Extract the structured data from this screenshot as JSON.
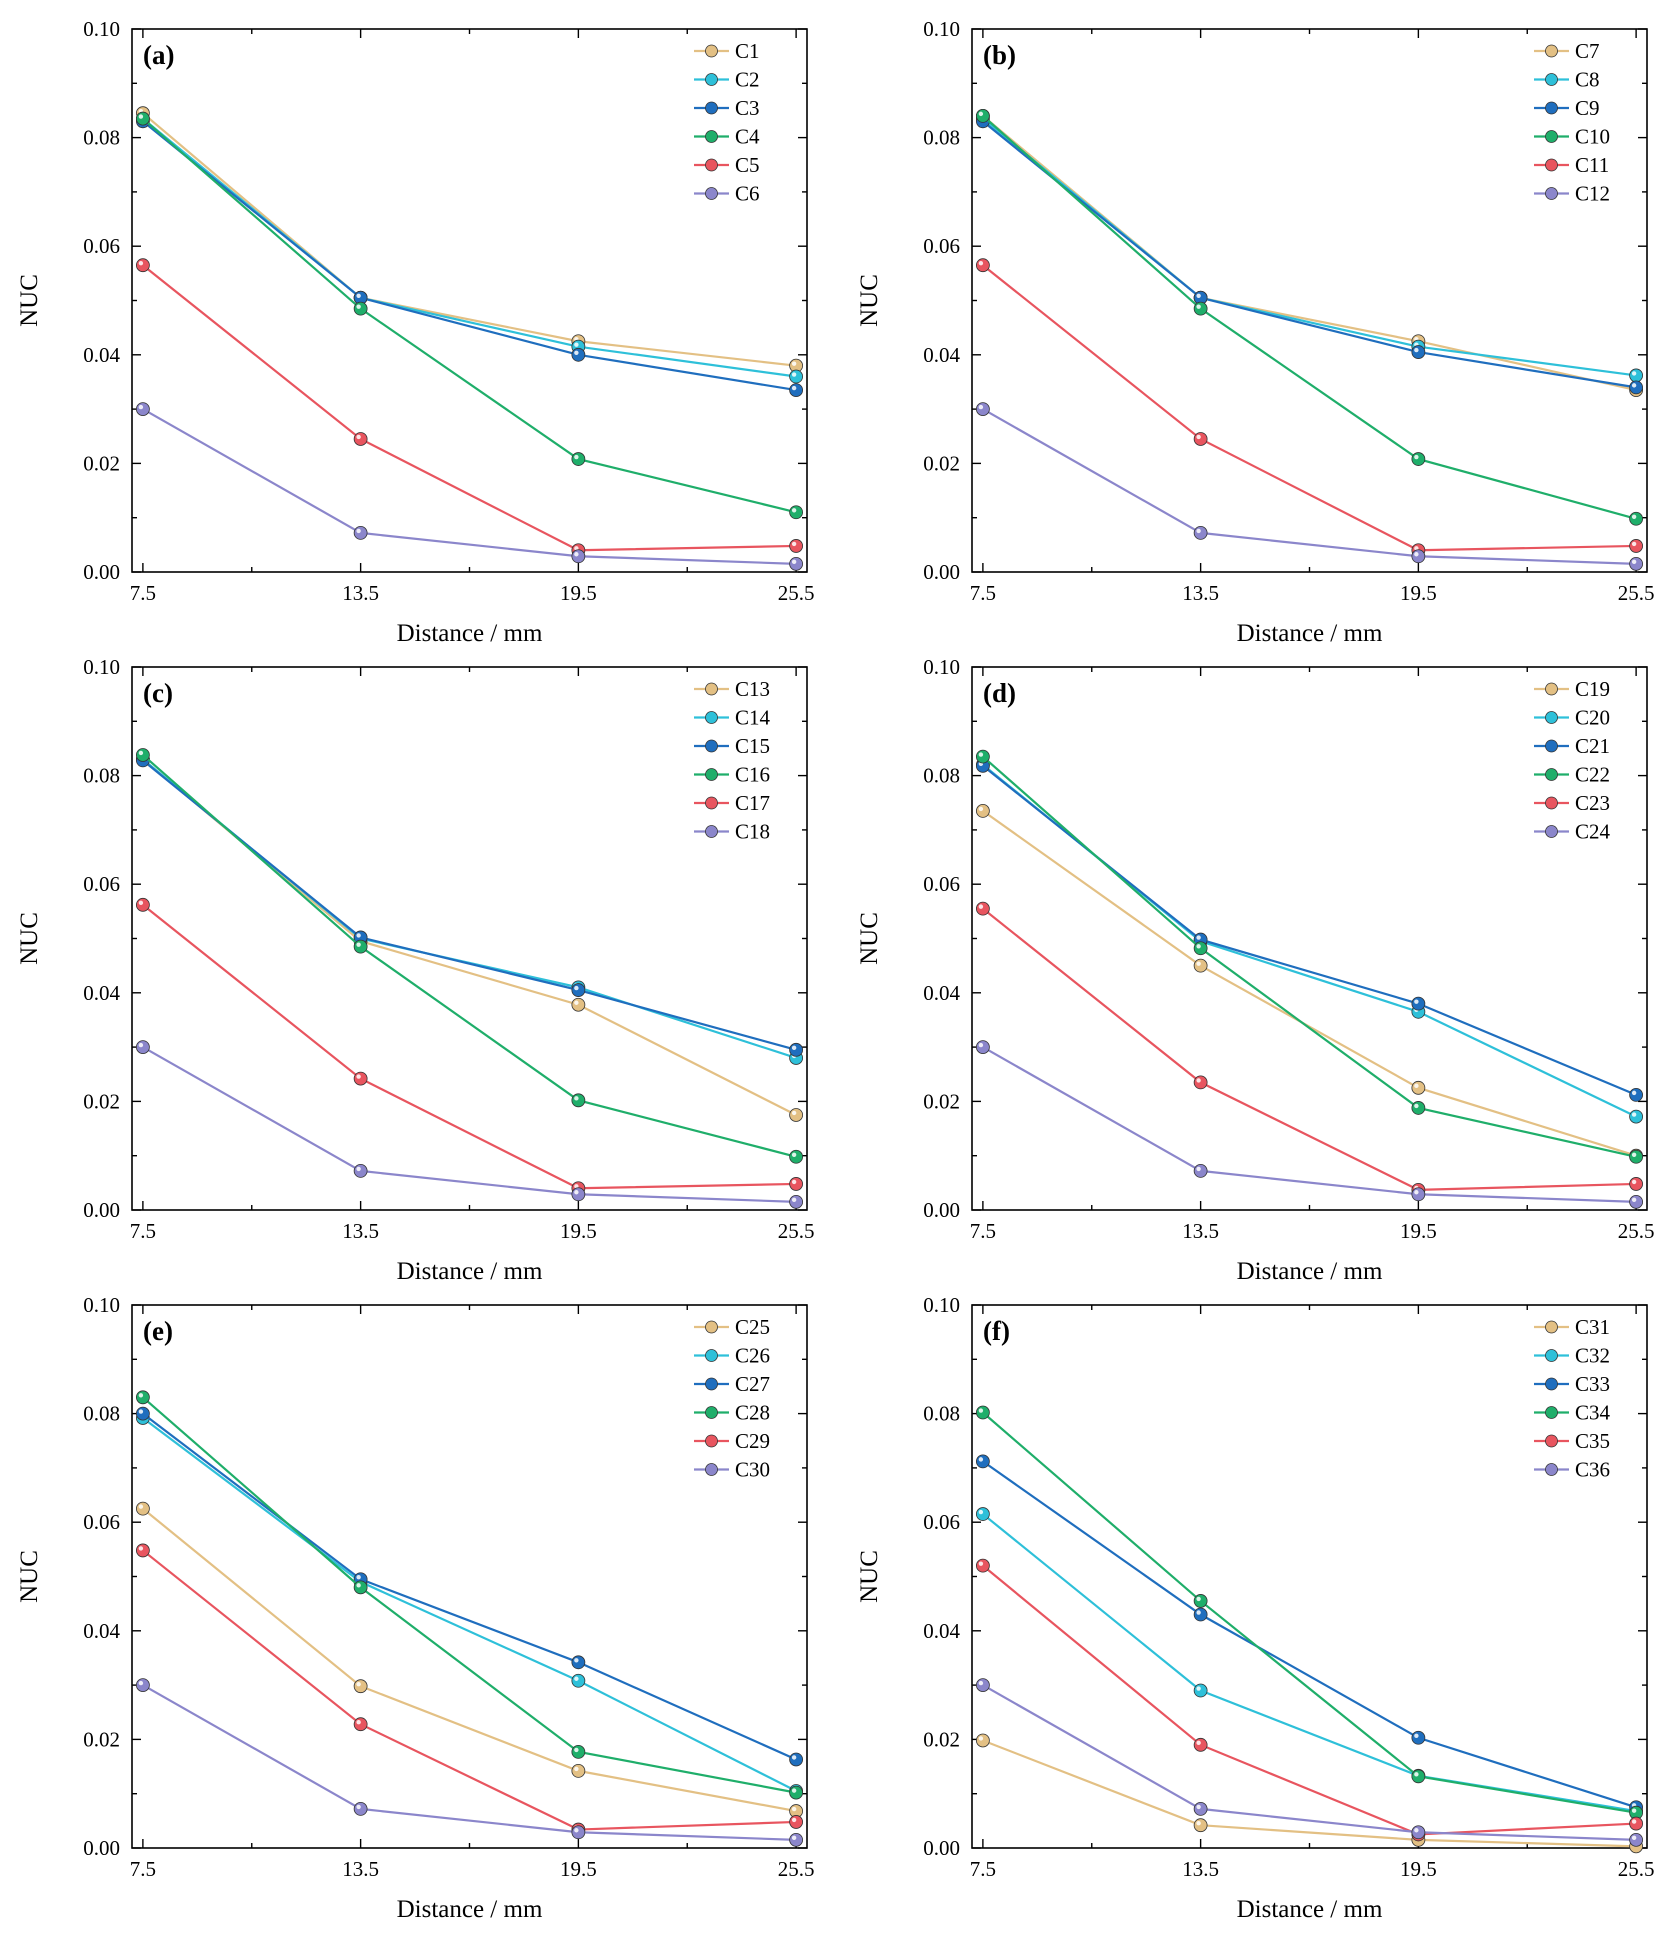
{
  "colors": {
    "c1": "#E3C084",
    "c2": "#2EC0D9",
    "c3": "#1F6EBE",
    "c4": "#1FAE6A",
    "c5": "#E8555F",
    "c6": "#8B86CB"
  },
  "chart_data": [
    {
      "type": "line",
      "panel_label": "(a)",
      "xlabel": "Distance / mm",
      "ylabel": "NUC",
      "x": [
        7.5,
        13.5,
        19.5,
        25.5
      ],
      "x_tick_labels": [
        "7.5",
        "13.5",
        "19.5",
        "25.5"
      ],
      "xlim": [
        7.2,
        25.8
      ],
      "ylim": [
        0,
        0.1
      ],
      "y_ticks": [
        0,
        0.02,
        0.04,
        0.06,
        0.08,
        0.1
      ],
      "y_tick_labels": [
        "0.00",
        "0.02",
        "0.04",
        "0.06",
        "0.08",
        "0.10"
      ],
      "legend_position": "top-right",
      "series": [
        {
          "name": "C1",
          "color_key": "c1",
          "values": [
            0.0845,
            0.0505,
            0.0425,
            0.038
          ]
        },
        {
          "name": "C2",
          "color_key": "c2",
          "values": [
            0.0835,
            0.0505,
            0.0415,
            0.036
          ]
        },
        {
          "name": "C3",
          "color_key": "c3",
          "values": [
            0.083,
            0.0505,
            0.04,
            0.0335
          ]
        },
        {
          "name": "C4",
          "color_key": "c4",
          "values": [
            0.0835,
            0.0485,
            0.0208,
            0.011
          ]
        },
        {
          "name": "C5",
          "color_key": "c5",
          "values": [
            0.0565,
            0.0245,
            0.004,
            0.0048
          ]
        },
        {
          "name": "C6",
          "color_key": "c6",
          "values": [
            0.03,
            0.0072,
            0.0029,
            0.0015
          ]
        }
      ]
    },
    {
      "type": "line",
      "panel_label": "(b)",
      "xlabel": "Distance / mm",
      "ylabel": "NUC",
      "x": [
        7.5,
        13.5,
        19.5,
        25.5
      ],
      "x_tick_labels": [
        "7.5",
        "13.5",
        "19.5",
        "25.5"
      ],
      "xlim": [
        7.2,
        25.8
      ],
      "ylim": [
        0,
        0.1
      ],
      "y_ticks": [
        0,
        0.02,
        0.04,
        0.06,
        0.08,
        0.1
      ],
      "y_tick_labels": [
        "0.00",
        "0.02",
        "0.04",
        "0.06",
        "0.08",
        "0.10"
      ],
      "legend_position": "top-right",
      "series": [
        {
          "name": "C7",
          "color_key": "c1",
          "values": [
            0.084,
            0.0505,
            0.0425,
            0.0335
          ]
        },
        {
          "name": "C8",
          "color_key": "c2",
          "values": [
            0.0835,
            0.0505,
            0.0415,
            0.0362
          ]
        },
        {
          "name": "C9",
          "color_key": "c3",
          "values": [
            0.083,
            0.0505,
            0.0405,
            0.034
          ]
        },
        {
          "name": "C10",
          "color_key": "c4",
          "values": [
            0.084,
            0.0485,
            0.0208,
            0.0098
          ]
        },
        {
          "name": "C11",
          "color_key": "c5",
          "values": [
            0.0565,
            0.0245,
            0.004,
            0.0048
          ]
        },
        {
          "name": "C12",
          "color_key": "c6",
          "values": [
            0.03,
            0.0072,
            0.0029,
            0.0015
          ]
        }
      ]
    },
    {
      "type": "line",
      "panel_label": "(c)",
      "xlabel": "Distance / mm",
      "ylabel": "NUC",
      "x": [
        7.5,
        13.5,
        19.5,
        25.5
      ],
      "x_tick_labels": [
        "7.5",
        "13.5",
        "19.5",
        "25.5"
      ],
      "xlim": [
        7.2,
        25.8
      ],
      "ylim": [
        0,
        0.1
      ],
      "y_ticks": [
        0,
        0.02,
        0.04,
        0.06,
        0.08,
        0.1
      ],
      "y_tick_labels": [
        "0.00",
        "0.02",
        "0.04",
        "0.06",
        "0.08",
        "0.10"
      ],
      "legend_position": "top-right",
      "series": [
        {
          "name": "C13",
          "color_key": "c1",
          "values": [
            0.083,
            0.0495,
            0.0378,
            0.0175
          ]
        },
        {
          "name": "C14",
          "color_key": "c2",
          "values": [
            0.083,
            0.05,
            0.041,
            0.028
          ]
        },
        {
          "name": "C15",
          "color_key": "c3",
          "values": [
            0.0828,
            0.0502,
            0.0405,
            0.0295
          ]
        },
        {
          "name": "C16",
          "color_key": "c4",
          "values": [
            0.0838,
            0.0485,
            0.0202,
            0.0098
          ]
        },
        {
          "name": "C17",
          "color_key": "c5",
          "values": [
            0.0562,
            0.0242,
            0.004,
            0.0048
          ]
        },
        {
          "name": "C18",
          "color_key": "c6",
          "values": [
            0.03,
            0.0072,
            0.0029,
            0.0015
          ]
        }
      ]
    },
    {
      "type": "line",
      "panel_label": "(d)",
      "xlabel": "Distance / mm",
      "ylabel": "NUC",
      "x": [
        7.5,
        13.5,
        19.5,
        25.5
      ],
      "x_tick_labels": [
        "7.5",
        "13.5",
        "19.5",
        "25.5"
      ],
      "xlim": [
        7.2,
        25.8
      ],
      "ylim": [
        0,
        0.1
      ],
      "y_ticks": [
        0,
        0.02,
        0.04,
        0.06,
        0.08,
        0.1
      ],
      "y_tick_labels": [
        "0.00",
        "0.02",
        "0.04",
        "0.06",
        "0.08",
        "0.10"
      ],
      "legend_position": "top-right",
      "series": [
        {
          "name": "C19",
          "color_key": "c1",
          "values": [
            0.0735,
            0.045,
            0.0225,
            0.01
          ]
        },
        {
          "name": "C20",
          "color_key": "c2",
          "values": [
            0.082,
            0.0495,
            0.0365,
            0.0172
          ]
        },
        {
          "name": "C21",
          "color_key": "c3",
          "values": [
            0.0818,
            0.0498,
            0.038,
            0.0212
          ]
        },
        {
          "name": "C22",
          "color_key": "c4",
          "values": [
            0.0835,
            0.0482,
            0.0188,
            0.0098
          ]
        },
        {
          "name": "C23",
          "color_key": "c5",
          "values": [
            0.0555,
            0.0235,
            0.0037,
            0.0048
          ]
        },
        {
          "name": "C24",
          "color_key": "c6",
          "values": [
            0.03,
            0.0072,
            0.0029,
            0.0015
          ]
        }
      ]
    },
    {
      "type": "line",
      "panel_label": "(e)",
      "xlabel": "Distance / mm",
      "ylabel": "NUC",
      "x": [
        7.5,
        13.5,
        19.5,
        25.5
      ],
      "x_tick_labels": [
        "7.5",
        "13.5",
        "19.5",
        "25.5"
      ],
      "xlim": [
        7.2,
        25.8
      ],
      "ylim": [
        0,
        0.1
      ],
      "y_ticks": [
        0,
        0.02,
        0.04,
        0.06,
        0.08,
        0.1
      ],
      "y_tick_labels": [
        "0.00",
        "0.02",
        "0.04",
        "0.06",
        "0.08",
        "0.10"
      ],
      "legend_position": "top-right",
      "series": [
        {
          "name": "C25",
          "color_key": "c1",
          "values": [
            0.0625,
            0.0298,
            0.0142,
            0.0068
          ]
        },
        {
          "name": "C26",
          "color_key": "c2",
          "values": [
            0.0792,
            0.049,
            0.0308,
            0.0105
          ]
        },
        {
          "name": "C27",
          "color_key": "c3",
          "values": [
            0.08,
            0.0495,
            0.0342,
            0.0163
          ]
        },
        {
          "name": "C28",
          "color_key": "c4",
          "values": [
            0.083,
            0.048,
            0.0177,
            0.0102
          ]
        },
        {
          "name": "C29",
          "color_key": "c5",
          "values": [
            0.0548,
            0.0228,
            0.0034,
            0.0048
          ]
        },
        {
          "name": "C30",
          "color_key": "c6",
          "values": [
            0.03,
            0.0072,
            0.0029,
            0.0015
          ]
        }
      ]
    },
    {
      "type": "line",
      "panel_label": "(f)",
      "xlabel": "Distance / mm",
      "ylabel": "NUC",
      "x": [
        7.5,
        13.5,
        19.5,
        25.5
      ],
      "x_tick_labels": [
        "7.5",
        "13.5",
        "19.5",
        "25.5"
      ],
      "xlim": [
        7.2,
        25.8
      ],
      "ylim": [
        0,
        0.1
      ],
      "y_ticks": [
        0,
        0.02,
        0.04,
        0.06,
        0.08,
        0.1
      ],
      "y_tick_labels": [
        "0.00",
        "0.02",
        "0.04",
        "0.06",
        "0.08",
        "0.10"
      ],
      "legend_position": "top-right",
      "series": [
        {
          "name": "C31",
          "color_key": "c1",
          "values": [
            0.0198,
            0.0042,
            0.0015,
            0.0003
          ]
        },
        {
          "name": "C32",
          "color_key": "c2",
          "values": [
            0.0615,
            0.029,
            0.0133,
            0.0068
          ]
        },
        {
          "name": "C33",
          "color_key": "c3",
          "values": [
            0.0712,
            0.043,
            0.0203,
            0.0075
          ]
        },
        {
          "name": "C34",
          "color_key": "c4",
          "values": [
            0.0802,
            0.0455,
            0.0132,
            0.0065
          ]
        },
        {
          "name": "C35",
          "color_key": "c5",
          "values": [
            0.052,
            0.019,
            0.0025,
            0.0045
          ]
        },
        {
          "name": "C36",
          "color_key": "c6",
          "values": [
            0.03,
            0.0072,
            0.0029,
            0.0015
          ]
        }
      ]
    }
  ]
}
